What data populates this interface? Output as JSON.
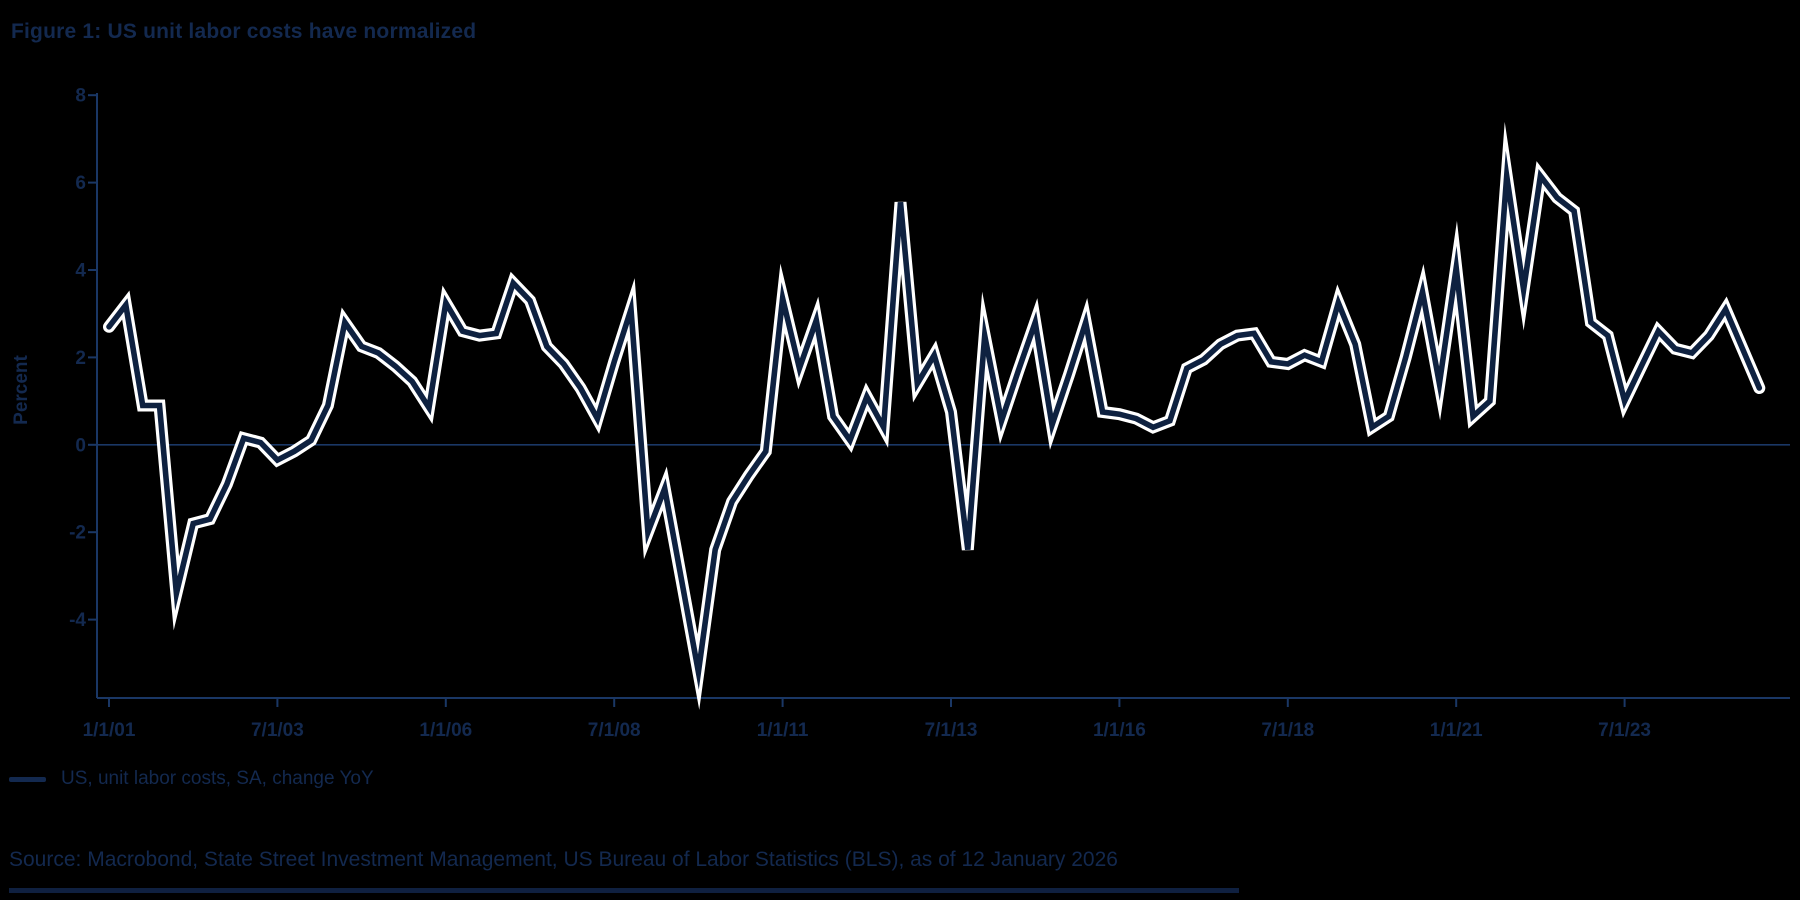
{
  "title": "Figure 1: US unit labor costs have normalized",
  "legend": {
    "label": "US, unit labor costs, SA, change YoY"
  },
  "source": "Source: Macrobond, State Street Investment Management, US Bureau of Labor Statistics (BLS), as of 12 January 2026",
  "colors": {
    "background": "#000000",
    "text": "#13294f",
    "axis": "#1a3765",
    "series_line": "#0e2140",
    "series_casing": "#ffffff"
  },
  "chart_data": {
    "type": "line",
    "title": "Figure 1: US unit labor costs have normalized",
    "xlabel": "",
    "ylabel": "Percent",
    "ylim": [
      -6,
      8
    ],
    "y_ticks": [
      8,
      6,
      4,
      2,
      0,
      -2,
      -4
    ],
    "zero_line": true,
    "grid": false,
    "legend_position": "bottom-left",
    "x_tick_labels": [
      "1/1/01",
      "7/1/03",
      "1/1/06",
      "7/1/08",
      "1/1/11",
      "7/1/13",
      "1/1/16",
      "7/1/18",
      "1/1/21",
      "7/1/23"
    ],
    "x_tick_every_quarters": 10,
    "frequency": "quarterly",
    "x_start": "2001 Q1",
    "x_end": "2025 Q3",
    "series": [
      {
        "name": "US, unit labor costs, SA, change YoY",
        "values": [
          2.7,
          3.2,
          0.9,
          0.9,
          -3.4,
          -1.8,
          -1.7,
          -0.9,
          0.15,
          0.05,
          -0.35,
          -0.15,
          0.1,
          0.9,
          2.8,
          2.25,
          2.1,
          1.8,
          1.45,
          0.85,
          3.25,
          2.6,
          2.5,
          2.55,
          3.7,
          3.3,
          2.25,
          1.85,
          1.3,
          0.6,
          1.9,
          3.1,
          -2.0,
          -1.0,
          -3.1,
          -5.2,
          -2.4,
          -1.3,
          -0.7,
          -0.15,
          3.35,
          1.75,
          2.85,
          0.65,
          0.1,
          1.1,
          0.4,
          5.55,
          1.4,
          2.05,
          0.75,
          -2.4,
          2.5,
          0.55,
          1.7,
          2.8,
          0.45,
          1.6,
          2.8,
          0.75,
          0.7,
          0.6,
          0.4,
          0.55,
          1.75,
          1.95,
          2.3,
          2.5,
          2.55,
          1.9,
          1.85,
          2.05,
          1.9,
          3.25,
          2.3,
          0.4,
          0.65,
          2.0,
          3.5,
          1.4,
          4.05,
          0.65,
          1.0,
          6.15,
          3.55,
          6.15,
          5.65,
          5.35,
          2.8,
          2.5,
          1.0,
          1.8,
          2.6,
          2.2,
          2.1,
          2.5,
          3.1,
          2.2,
          1.3
        ]
      }
    ]
  }
}
